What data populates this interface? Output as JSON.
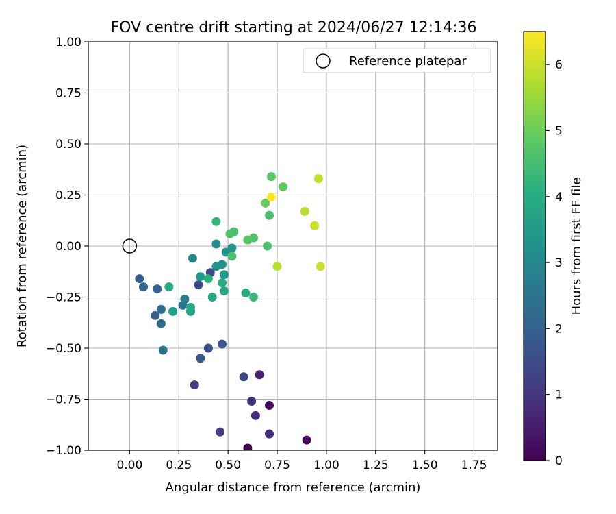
{
  "chart_data": {
    "type": "scatter",
    "title": "FOV centre drift starting at 2024/06/27 12:14:36",
    "xlabel": "Angular distance from reference (arcmin)",
    "ylabel": "Rotation from reference (arcmin)",
    "xlim": [
      -0.21,
      1.87
    ],
    "ylim": [
      -1.0,
      1.0
    ],
    "x_ticks": [
      0.0,
      0.25,
      0.5,
      0.75,
      1.0,
      1.25,
      1.5,
      1.75
    ],
    "x_tick_labels": [
      "0.00",
      "0.25",
      "0.50",
      "0.75",
      "1.00",
      "1.25",
      "1.50",
      "1.75"
    ],
    "y_ticks": [
      1.0,
      0.75,
      0.5,
      0.25,
      0.0,
      -0.25,
      -0.5,
      -0.75,
      -1.0
    ],
    "y_tick_labels": [
      "1.00",
      "0.75",
      "0.50",
      "0.25",
      "0.00",
      "−0.25",
      "−0.50",
      "−0.75",
      "−1.00"
    ],
    "grid": true,
    "legend": {
      "label": "Reference platepar",
      "location": "top-right"
    },
    "reference_point": {
      "x": 0.0,
      "y": 0.0
    },
    "colorbar": {
      "label": "Hours from first FF file",
      "range": [
        0,
        6.5
      ],
      "ticks": [
        0,
        1,
        2,
        3,
        4,
        5,
        6
      ],
      "tick_labels": [
        "0",
        "1",
        "2",
        "3",
        "4",
        "5",
        "6"
      ],
      "colormap": "viridis"
    },
    "series": [
      {
        "name": "FOV centre",
        "points": [
          {
            "x": 0.6,
            "y": -0.99,
            "c": 0.0
          },
          {
            "x": 0.9,
            "y": -0.95,
            "c": 0.1
          },
          {
            "x": 0.71,
            "y": -0.78,
            "c": 0.2
          },
          {
            "x": 0.66,
            "y": -0.63,
            "c": 0.6
          },
          {
            "x": 0.71,
            "y": -0.92,
            "c": 0.8
          },
          {
            "x": 0.64,
            "y": -0.83,
            "c": 0.9
          },
          {
            "x": 0.62,
            "y": -0.76,
            "c": 1.0
          },
          {
            "x": 0.46,
            "y": -0.91,
            "c": 1.1
          },
          {
            "x": 0.33,
            "y": -0.68,
            "c": 1.2
          },
          {
            "x": 0.58,
            "y": -0.64,
            "c": 1.4
          },
          {
            "x": 0.35,
            "y": -0.19,
            "c": 1.4
          },
          {
            "x": 0.41,
            "y": -0.13,
            "c": 1.4
          },
          {
            "x": 0.4,
            "y": -0.5,
            "c": 1.6
          },
          {
            "x": 0.47,
            "y": -0.48,
            "c": 1.7
          },
          {
            "x": 0.36,
            "y": -0.55,
            "c": 1.8
          },
          {
            "x": 0.13,
            "y": -0.34,
            "c": 1.9
          },
          {
            "x": 0.05,
            "y": -0.16,
            "c": 2.0
          },
          {
            "x": 0.14,
            "y": -0.21,
            "c": 2.1
          },
          {
            "x": 0.07,
            "y": -0.2,
            "c": 2.1
          },
          {
            "x": 0.16,
            "y": -0.38,
            "c": 2.2
          },
          {
            "x": 0.16,
            "y": -0.31,
            "c": 2.3
          },
          {
            "x": 0.17,
            "y": -0.51,
            "c": 2.5
          },
          {
            "x": 0.27,
            "y": -0.29,
            "c": 2.6
          },
          {
            "x": 0.28,
            "y": -0.26,
            "c": 2.8
          },
          {
            "x": 0.32,
            "y": -0.06,
            "c": 3.1
          },
          {
            "x": 0.44,
            "y": 0.01,
            "c": 3.1
          },
          {
            "x": 0.49,
            "y": -0.03,
            "c": 3.2
          },
          {
            "x": 0.52,
            "y": -0.01,
            "c": 3.3
          },
          {
            "x": 0.44,
            "y": -0.1,
            "c": 3.3
          },
          {
            "x": 0.47,
            "y": -0.09,
            "c": 3.3
          },
          {
            "x": 0.48,
            "y": -0.14,
            "c": 3.4
          },
          {
            "x": 0.36,
            "y": -0.15,
            "c": 3.5
          },
          {
            "x": 0.22,
            "y": -0.32,
            "c": 3.6
          },
          {
            "x": 0.31,
            "y": -0.32,
            "c": 3.7
          },
          {
            "x": 0.31,
            "y": -0.3,
            "c": 3.9
          },
          {
            "x": 0.2,
            "y": -0.2,
            "c": 3.9
          },
          {
            "x": 0.42,
            "y": -0.25,
            "c": 3.9
          },
          {
            "x": 0.48,
            "y": -0.22,
            "c": 3.9
          },
          {
            "x": 0.47,
            "y": -0.18,
            "c": 4.0
          },
          {
            "x": 0.59,
            "y": -0.23,
            "c": 4.0
          },
          {
            "x": 0.4,
            "y": -0.16,
            "c": 4.1
          },
          {
            "x": 0.44,
            "y": 0.12,
            "c": 4.3
          },
          {
            "x": 0.63,
            "y": -0.25,
            "c": 4.4
          },
          {
            "x": 0.52,
            "y": -0.05,
            "c": 4.6
          },
          {
            "x": 0.53,
            "y": 0.07,
            "c": 4.6
          },
          {
            "x": 0.71,
            "y": 0.15,
            "c": 4.6
          },
          {
            "x": 0.7,
            "y": 0.0,
            "c": 4.6
          },
          {
            "x": 0.51,
            "y": 0.06,
            "c": 4.7
          },
          {
            "x": 0.63,
            "y": 0.04,
            "c": 4.7
          },
          {
            "x": 0.6,
            "y": 0.03,
            "c": 4.8
          },
          {
            "x": 0.72,
            "y": 0.34,
            "c": 4.8
          },
          {
            "x": 0.78,
            "y": 0.29,
            "c": 4.9
          },
          {
            "x": 0.69,
            "y": 0.21,
            "c": 5.0
          },
          {
            "x": 0.75,
            "y": -0.1,
            "c": 5.8
          },
          {
            "x": 0.89,
            "y": 0.17,
            "c": 5.8
          },
          {
            "x": 0.96,
            "y": 0.33,
            "c": 5.9
          },
          {
            "x": 0.94,
            "y": 0.1,
            "c": 6.0
          },
          {
            "x": 0.97,
            "y": -0.1,
            "c": 6.0
          },
          {
            "x": 0.72,
            "y": 0.24,
            "c": 6.5
          }
        ]
      }
    ]
  }
}
